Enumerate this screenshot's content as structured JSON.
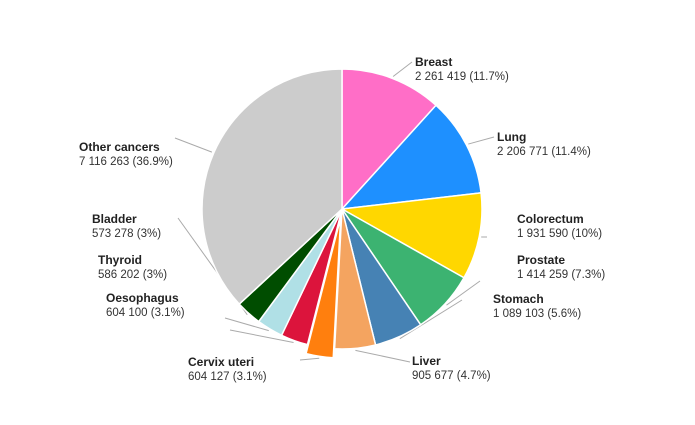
{
  "chart_data": {
    "type": "pie",
    "title": "",
    "slices": [
      {
        "name": "Breast",
        "value": 2261419,
        "value_text": "2 261 419",
        "percent_text": "(11.7%)",
        "percent": 11.7,
        "color": "#ff6ec7"
      },
      {
        "name": "Lung",
        "value": 2206771,
        "value_text": "2 206 771",
        "percent_text": "(11.4%)",
        "percent": 11.4,
        "color": "#1e90ff"
      },
      {
        "name": "Colorectum",
        "value": 1931590,
        "value_text": "1 931 590",
        "percent_text": "(10%)",
        "percent": 10.0,
        "color": "#ffd700"
      },
      {
        "name": "Prostate",
        "value": 1414259,
        "value_text": "1 414 259",
        "percent_text": "(7.3%)",
        "percent": 7.3,
        "color": "#3cb371"
      },
      {
        "name": "Stomach",
        "value": 1089103,
        "value_text": "1 089 103",
        "percent_text": "(5.6%)",
        "percent": 5.6,
        "color": "#4682b4"
      },
      {
        "name": "Liver",
        "value": 905677,
        "value_text": "905 677",
        "percent_text": "(4.7%)",
        "percent": 4.7,
        "color": "#f4a460"
      },
      {
        "name": "Cervix uteri",
        "value": 604127,
        "value_text": "604 127",
        "percent_text": "(3.1%)",
        "percent": 3.1,
        "color": "#ff7f0e"
      },
      {
        "name": "Oesophagus",
        "value": 604100,
        "value_text": "604 100",
        "percent_text": "(3.1%)",
        "percent": 3.1,
        "color": "#dc143c"
      },
      {
        "name": "Thyroid",
        "value": 586202,
        "value_text": "586 202",
        "percent_text": "(3%)",
        "percent": 3.0,
        "color": "#b0e0e6"
      },
      {
        "name": "Bladder",
        "value": 573278,
        "value_text": "573 278",
        "percent_text": "(3%)",
        "percent": 3.0,
        "color": "#004d00"
      },
      {
        "name": "Other cancers",
        "value": 7116263,
        "value_text": "7 116 263",
        "percent_text": "(36.9%)",
        "percent": 36.9,
        "color": "#cccccc"
      }
    ],
    "exploded": [
      "Cervix uteri"
    ],
    "start": "12 o'clock, clockwise",
    "legend": "none; slice labels with leader lines"
  }
}
